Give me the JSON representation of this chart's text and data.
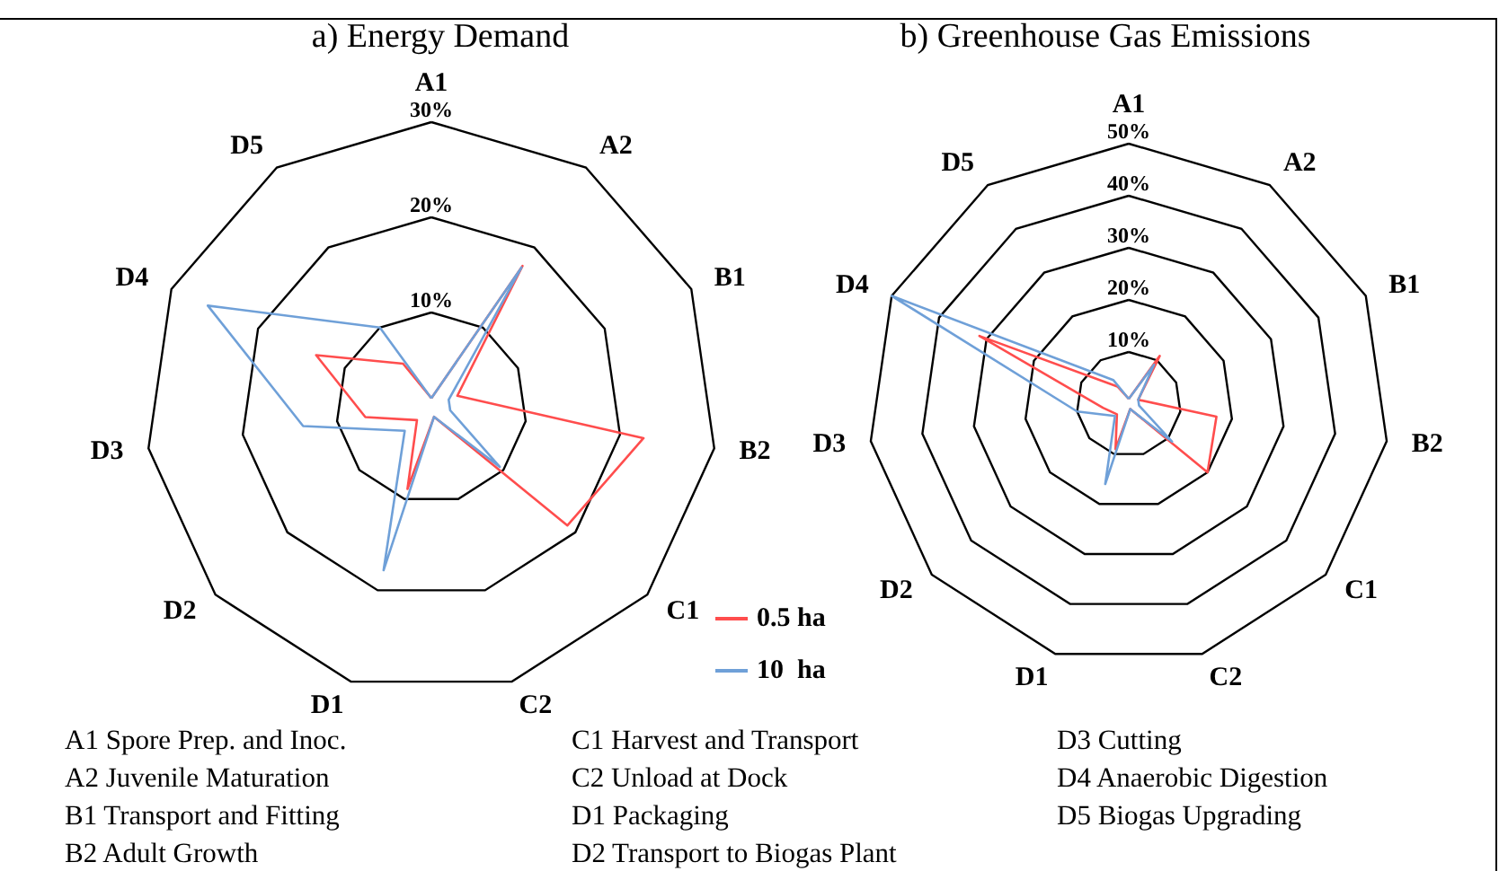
{
  "chart_data": [
    {
      "type": "radar",
      "title": "a) Energy Demand",
      "categories": [
        "A1",
        "A2",
        "B1",
        "B2",
        "C1",
        "C2",
        "D1",
        "D2",
        "D3",
        "D4",
        "D5"
      ],
      "ylim": [
        0,
        30
      ],
      "yticks": [
        {
          "value": 10,
          "label": "10%"
        },
        {
          "value": 20,
          "label": "20%"
        },
        {
          "value": 30,
          "label": "30%"
        }
      ],
      "legend": "bottom right",
      "series": [
        {
          "name": "0.5 ha",
          "color": "#ff4d4d",
          "values": [
            1,
            17.7,
            3,
            22.5,
            18.9,
            1,
            8.9,
            2,
            7,
            13.3,
            5.5
          ]
        },
        {
          "name": "10  ha",
          "color": "#6fa0d8",
          "values": [
            1,
            17.5,
            2,
            2,
            9.5,
            1,
            17.8,
            3.7,
            13.6,
            25.8,
            10
          ]
        }
      ],
      "annotations": [
        "A1 Spore Prep. and Inoc.",
        "A2 Juvenile Maturation",
        "B1 Transport and Fitting",
        "B2 Adult Growth",
        "C1 Harvest and Transport",
        "C2 Unload at Dock",
        "D1 Packaging",
        "D2 Transport to Biogas Plant",
        "D3 Cutting",
        "D4 Anaerobic Digestion",
        "D5 Biogas Upgrading"
      ]
    },
    {
      "type": "radar",
      "title": "b) Greenhouse Gas Emissions",
      "categories": [
        "A1",
        "A2",
        "B1",
        "B2",
        "C1",
        "C2",
        "D1",
        "D2",
        "D3",
        "D4",
        "D5"
      ],
      "ylim": [
        0,
        50
      ],
      "yticks": [
        {
          "value": 10,
          "label": "10%"
        },
        {
          "value": 20,
          "label": "20%"
        },
        {
          "value": 30,
          "label": "30%"
        },
        {
          "value": 40,
          "label": "40%"
        },
        {
          "value": 50,
          "label": "50%"
        }
      ],
      "series": [
        {
          "color": "#ff4d4d",
          "values": [
            1,
            11,
            2,
            17,
            20,
            1,
            9,
            3,
            5,
            31.5,
            4
          ]
        },
        {
          "color": "#6fa0d8",
          "values": [
            1,
            9,
            2,
            2,
            11,
            1,
            16,
            3.5,
            10,
            50,
            5.5
          ]
        }
      ]
    }
  ]
}
